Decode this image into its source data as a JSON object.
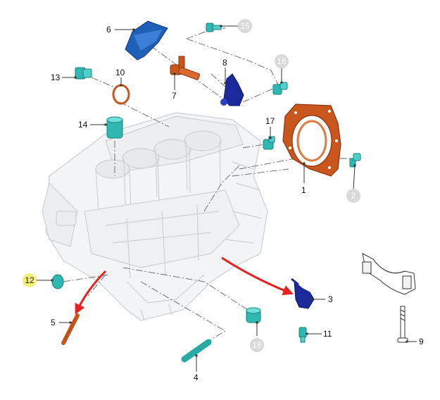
{
  "colors": {
    "teal": "#2fb8b1",
    "teal_dark": "#15807b",
    "orange": "#c9561c",
    "orange_dark": "#8a3410",
    "blue": "#1f5fb8",
    "navy": "#1b2a9a",
    "red_arrow": "#e8201e",
    "block_line": "#c9ced3",
    "badge_gray": "#d9d9d9",
    "badge_yellow": "#f4f079",
    "leader": "#555555"
  },
  "callouts": [
    {
      "id": "c1",
      "label": "1",
      "style": "plain"
    },
    {
      "id": "c2",
      "label": "2",
      "style": "gray"
    },
    {
      "id": "c3",
      "label": "3",
      "style": "plain"
    },
    {
      "id": "c4",
      "label": "4",
      "style": "plain"
    },
    {
      "id": "c5",
      "label": "5",
      "style": "plain"
    },
    {
      "id": "c6",
      "label": "6",
      "style": "plain"
    },
    {
      "id": "c7",
      "label": "7",
      "style": "plain"
    },
    {
      "id": "c8",
      "label": "8",
      "style": "plain"
    },
    {
      "id": "c9",
      "label": "9",
      "style": "plain"
    },
    {
      "id": "c10",
      "label": "10",
      "style": "plain"
    },
    {
      "id": "c11",
      "label": "11",
      "style": "plain"
    },
    {
      "id": "c12",
      "label": "12",
      "style": "yellow"
    },
    {
      "id": "c13",
      "label": "13",
      "style": "plain"
    },
    {
      "id": "c14",
      "label": "14",
      "style": "plain"
    },
    {
      "id": "c15",
      "label": "15",
      "style": "gray"
    },
    {
      "id": "c16",
      "label": "16",
      "style": "gray"
    },
    {
      "id": "c17",
      "label": "17",
      "style": "plain"
    },
    {
      "id": "c18",
      "label": "18",
      "style": "gray"
    }
  ]
}
